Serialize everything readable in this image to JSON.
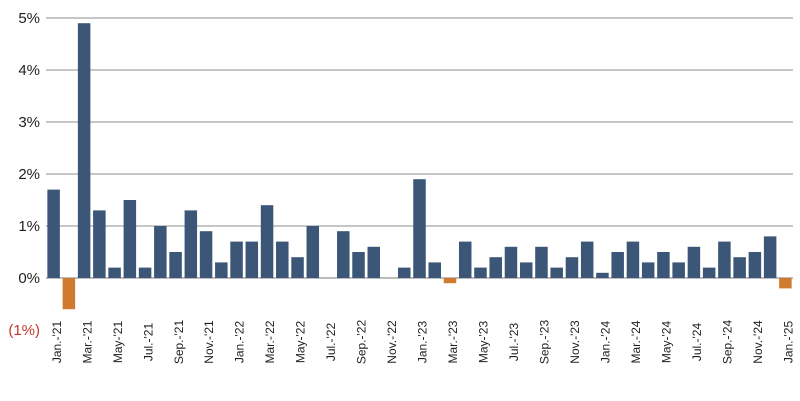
{
  "chart_data": {
    "type": "bar",
    "title": "",
    "xlabel": "",
    "ylabel": "",
    "ylim": [
      -1,
      5
    ],
    "grid": true,
    "legend": "none",
    "colors": {
      "positive": "#3b5676",
      "negative": "#cf7a2e",
      "negative_label": "#c0392b"
    },
    "y_ticks": [
      {
        "value": 5,
        "label": "5%"
      },
      {
        "value": 4,
        "label": "4%"
      },
      {
        "value": 3,
        "label": "3%"
      },
      {
        "value": 2,
        "label": "2%"
      },
      {
        "value": 1,
        "label": "1%"
      },
      {
        "value": 0,
        "label": "0%"
      },
      {
        "value": -1,
        "label": "(1%)"
      }
    ],
    "categories": [
      "Jan.-'21",
      "Feb.-'21",
      "Mar.-'21",
      "Apr.-'21",
      "May-'21",
      "Jun.-'21",
      "Jul.-'21",
      "Aug.-'21",
      "Sep.-'21",
      "Oct.-'21",
      "Nov.-'21",
      "Dec.-'21",
      "Jan.-'22",
      "Feb.-'22",
      "Mar.-'22",
      "Apr.-'22",
      "May-'22",
      "Jun.-'22",
      "Jul.-'22",
      "Aug.-'22",
      "Sep.-'22",
      "Oct.-'22",
      "Nov.-'22",
      "Dec.-'22",
      "Jan.-'23",
      "Feb.-'23",
      "Mar.-'23",
      "Apr.-'23",
      "May-'23",
      "Jun.-'23",
      "Jul.-'23",
      "Aug.-'23",
      "Sep.-'23",
      "Oct.-'23",
      "Nov.-'23",
      "Dec.-'23",
      "Jan.-'24",
      "Feb.-'24",
      "Mar.-'24",
      "Apr.-'24",
      "May-'24",
      "Jun.-'24",
      "Jul.-'24",
      "Aug.-'24",
      "Sep.-'24",
      "Oct.-'24",
      "Nov.-'24",
      "Dec.-'24",
      "Jan.-'25"
    ],
    "x_tick_labels": [
      "Jan.-'21",
      "Mar.-'21",
      "May-'21",
      "Jul.-'21",
      "Sep.-'21",
      "Nov.-'21",
      "Jan.-'22",
      "Mar.-'22",
      "May-'22",
      "Jul.-'22",
      "Sep.-'22",
      "Nov.-'22",
      "Jan.-'23",
      "Mar.-'23",
      "May-'23",
      "Jul.-'23",
      "Sep.-'23",
      "Nov.-'23",
      "Jan.-'24",
      "Mar.-'24",
      "May-'24",
      "Jul.-'24",
      "Sep.-'24",
      "Nov.-'24",
      "Jan.-'25"
    ],
    "values": [
      1.7,
      -0.6,
      4.9,
      1.3,
      0.2,
      1.5,
      0.2,
      1.0,
      0.5,
      1.3,
      0.9,
      0.3,
      0.7,
      0.7,
      1.4,
      0.7,
      0.4,
      1.0,
      0.0,
      0.9,
      0.5,
      0.6,
      0.0,
      0.2,
      1.9,
      0.3,
      -0.1,
      0.7,
      0.2,
      0.4,
      0.6,
      0.3,
      0.6,
      0.2,
      0.4,
      0.7,
      0.1,
      0.5,
      0.7,
      0.3,
      0.5,
      0.3,
      0.6,
      0.2,
      0.7,
      0.4,
      0.5,
      0.8,
      -0.2
    ]
  }
}
